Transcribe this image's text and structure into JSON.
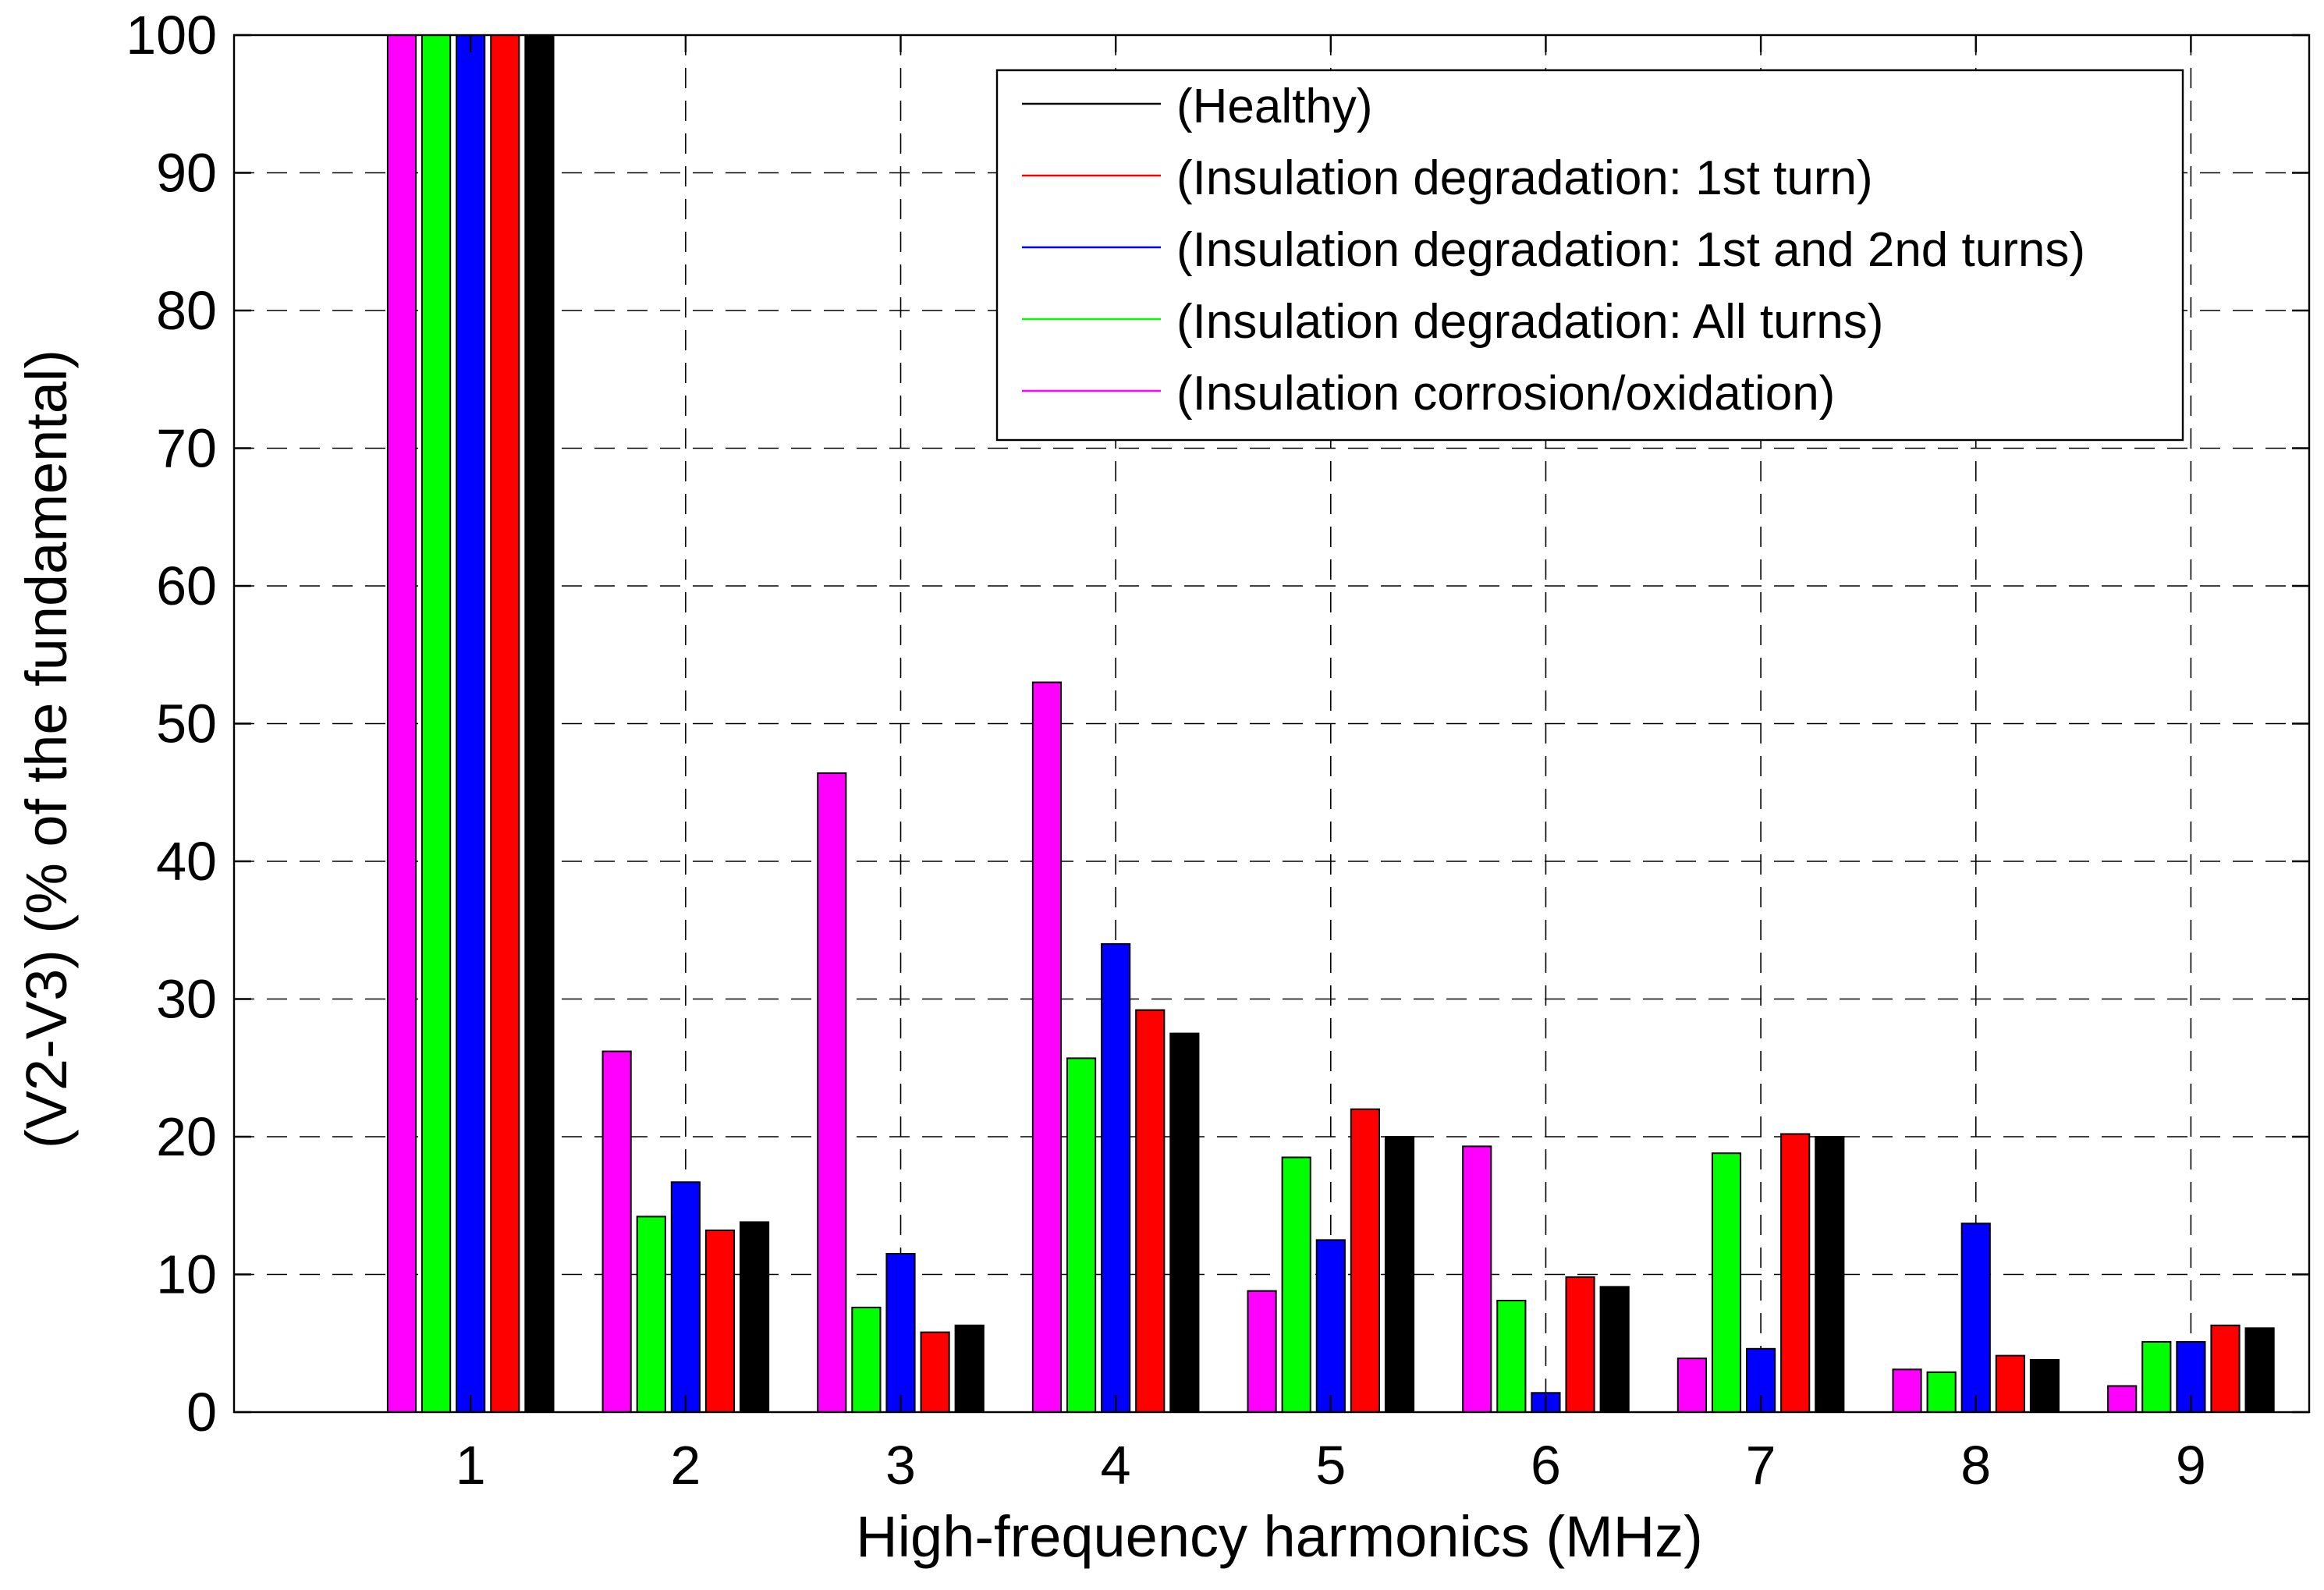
{
  "chart_data": {
    "type": "bar",
    "title": "",
    "xlabel": "High-frequency harmonics (MHz)",
    "ylabel": "(V2-V3) (% of the fundamental)",
    "ylim": [
      0,
      100
    ],
    "xlim": [
      -0.1,
      9.55
    ],
    "y_ticks": [
      0,
      10,
      20,
      30,
      40,
      50,
      60,
      70,
      80,
      90,
      100
    ],
    "categories": [
      "1",
      "2",
      "3",
      "4",
      "5",
      "6",
      "7",
      "8",
      "9"
    ],
    "grid": true,
    "legend_position": "top-right",
    "series": [
      {
        "name": "(Insulation corrosion/oxidation)",
        "color": "#ff00ff",
        "values": [
          100,
          26.2,
          46.4,
          53.0,
          8.8,
          19.3,
          3.9,
          3.1,
          1.9
        ]
      },
      {
        "name": "(Insulation degradation: All turns)",
        "color": "#00ff00",
        "values": [
          100,
          14.2,
          7.6,
          25.7,
          18.5,
          8.1,
          18.8,
          2.9,
          5.1
        ]
      },
      {
        "name": "(Insulation degradation: 1st and 2nd turns)",
        "color": "#0000ff",
        "values": [
          100,
          16.7,
          11.5,
          34.0,
          12.5,
          1.4,
          4.6,
          13.7,
          5.1
        ]
      },
      {
        "name": "(Insulation degradation: 1st turn)",
        "color": "#ff0000",
        "values": [
          100,
          13.2,
          5.8,
          29.2,
          22.0,
          9.8,
          20.2,
          4.1,
          6.3
        ]
      },
      {
        "name": "(Healthy)",
        "color": "#000000",
        "values": [
          100,
          13.8,
          6.3,
          27.5,
          20.0,
          9.1,
          20.0,
          3.8,
          6.1
        ]
      }
    ],
    "legend_order": [
      "(Healthy)",
      "(Insulation degradation: 1st turn)",
      "(Insulation degradation: 1st and 2nd turns)",
      "(Insulation degradation: All turns)",
      "(Insulation corrosion/oxidation)"
    ]
  }
}
